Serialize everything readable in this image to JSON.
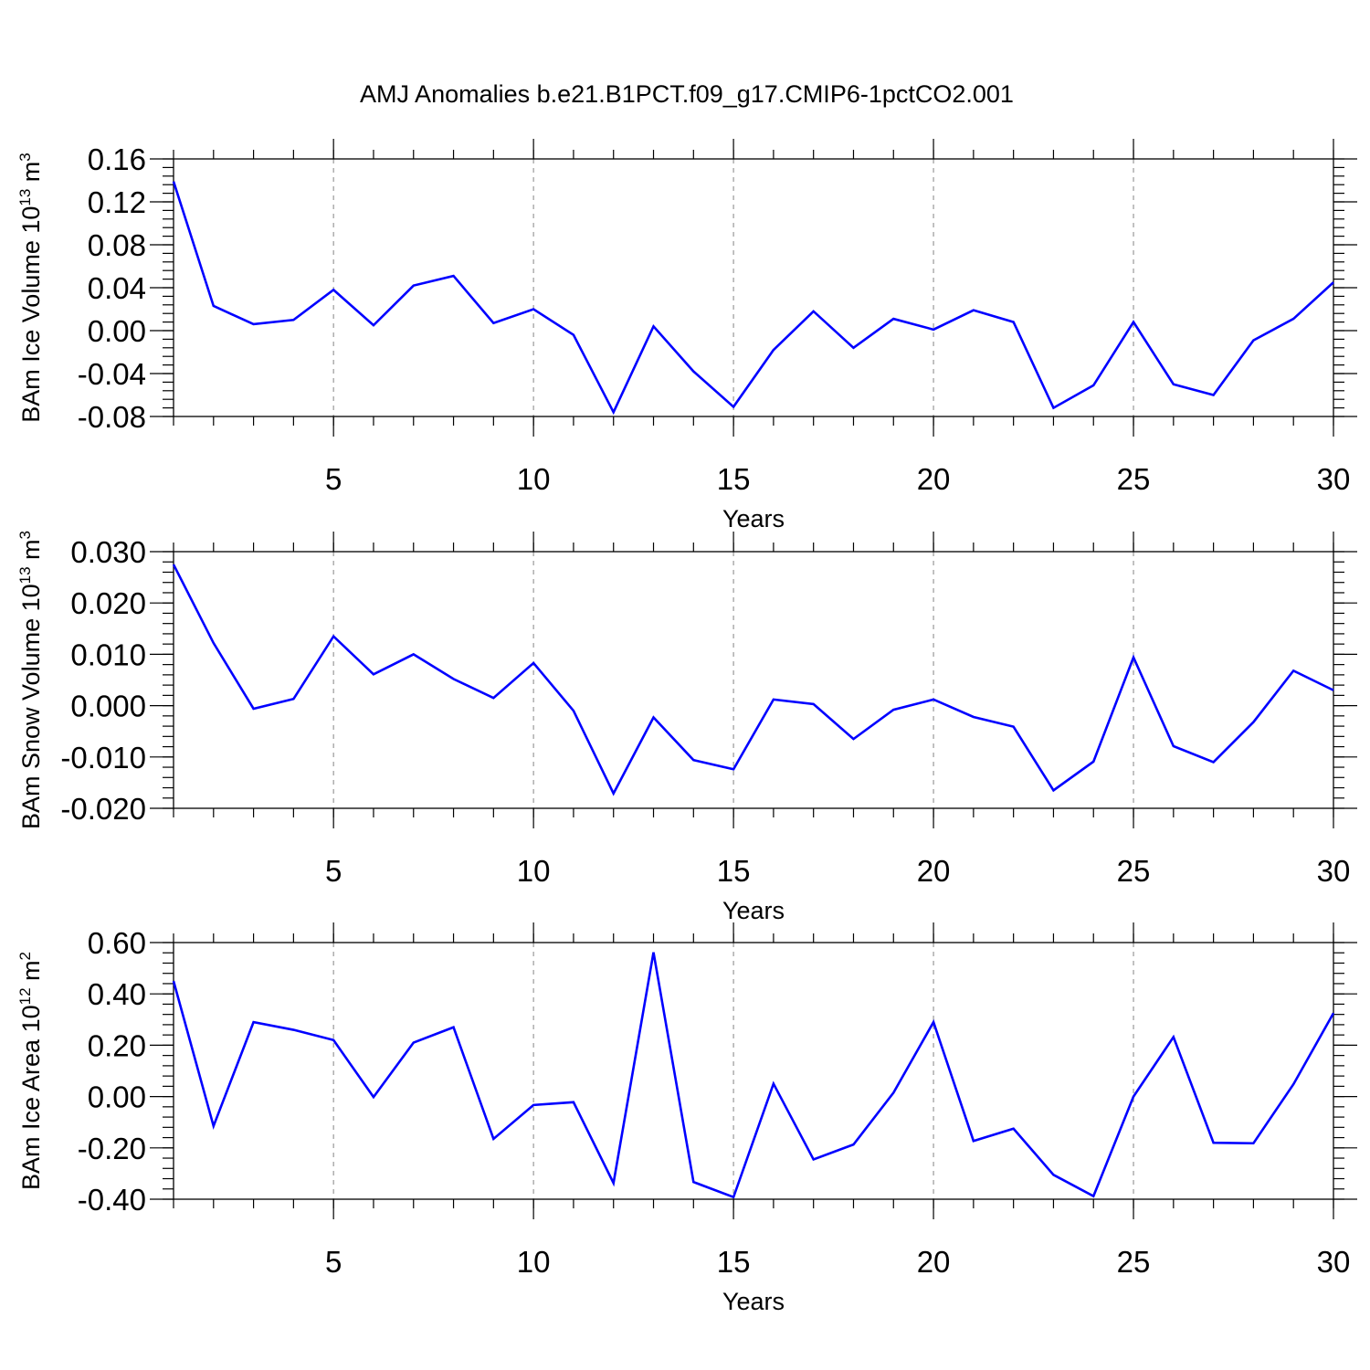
{
  "title": "AMJ Anomalies b.e21.B1PCT.f09_g17.CMIP6-1pctCO2.001",
  "colors": {
    "line": "#0000ff",
    "grid": "#999999",
    "axis": "#000000"
  },
  "chart_data": [
    {
      "type": "line",
      "xlabel": "Years",
      "ylabel": {
        "main": "BAm Ice Volume 10",
        "sup": "13",
        "unit": " m",
        "unit_sup": "3"
      },
      "xlim": [
        1,
        30
      ],
      "ylim": [
        -0.08,
        0.16
      ],
      "xticks": [
        5,
        10,
        15,
        20,
        25,
        30
      ],
      "xtick_labels": [
        "5",
        "10",
        "15",
        "20",
        "25",
        "30"
      ],
      "yticks": [
        -0.08,
        -0.04,
        0.0,
        0.04,
        0.08,
        0.12,
        0.16
      ],
      "ytick_labels": [
        "-0.08",
        "-0.04",
        "0.00",
        "0.04",
        "0.08",
        "0.12",
        "0.16"
      ],
      "grid": "vertical dashed at major x ticks",
      "x": [
        1,
        2,
        3,
        4,
        5,
        6,
        7,
        8,
        9,
        10,
        11,
        12,
        13,
        14,
        15,
        16,
        17,
        18,
        19,
        20,
        21,
        22,
        23,
        24,
        25,
        26,
        27,
        28,
        29,
        30
      ],
      "series": [
        {
          "name": "BAm Ice Volume",
          "values": [
            0.139,
            0.023,
            0.006,
            0.01,
            0.038,
            0.005,
            0.042,
            0.051,
            0.007,
            0.02,
            -0.004,
            -0.076,
            0.004,
            -0.038,
            -0.071,
            -0.018,
            0.018,
            -0.016,
            0.011,
            0.001,
            0.019,
            0.008,
            -0.072,
            -0.051,
            0.008,
            -0.05,
            -0.06,
            -0.009,
            0.011,
            0.045
          ]
        }
      ]
    },
    {
      "type": "line",
      "xlabel": "Years",
      "ylabel": {
        "main": "BAm Snow Volume 10",
        "sup": "13",
        "unit": " m",
        "unit_sup": "3"
      },
      "xlim": [
        1,
        30
      ],
      "ylim": [
        -0.02,
        0.03
      ],
      "xticks": [
        5,
        10,
        15,
        20,
        25,
        30
      ],
      "xtick_labels": [
        "5",
        "10",
        "15",
        "20",
        "25",
        "30"
      ],
      "yticks": [
        -0.02,
        -0.01,
        0.0,
        0.01,
        0.02,
        0.03
      ],
      "ytick_labels": [
        "-0.020",
        "-0.010",
        "0.000",
        "0.010",
        "0.020",
        "0.030"
      ],
      "grid": "vertical dashed at major x ticks",
      "x": [
        1,
        2,
        3,
        4,
        5,
        6,
        7,
        8,
        9,
        10,
        11,
        12,
        13,
        14,
        15,
        16,
        17,
        18,
        19,
        20,
        21,
        22,
        23,
        24,
        25,
        26,
        27,
        28,
        29,
        30
      ],
      "series": [
        {
          "name": "BAm Snow Volume",
          "values": [
            0.0275,
            0.0122,
            -0.0006,
            0.0013,
            0.0135,
            0.0061,
            0.01,
            0.0052,
            0.0015,
            0.0083,
            -0.001,
            -0.0171,
            -0.0023,
            -0.0106,
            -0.0124,
            0.0012,
            0.0003,
            -0.0065,
            -0.0008,
            0.0012,
            -0.0022,
            -0.0041,
            -0.0165,
            -0.0109,
            0.0094,
            -0.0079,
            -0.011,
            -0.0032,
            0.0068,
            0.003
          ]
        }
      ]
    },
    {
      "type": "line",
      "xlabel": "Years",
      "ylabel": {
        "main": "BAm Ice Area 10",
        "sup": "12",
        "unit": " m",
        "unit_sup": "2"
      },
      "xlim": [
        1,
        30
      ],
      "ylim": [
        -0.4,
        0.6
      ],
      "xticks": [
        5,
        10,
        15,
        20,
        25,
        30
      ],
      "xtick_labels": [
        "5",
        "10",
        "15",
        "20",
        "25",
        "30"
      ],
      "yticks": [
        -0.4,
        -0.2,
        0.0,
        0.2,
        0.4,
        0.6
      ],
      "ytick_labels": [
        "-0.40",
        "-0.20",
        "0.00",
        "0.20",
        "0.40",
        "0.60"
      ],
      "grid": "vertical dashed at major x ticks",
      "x": [
        1,
        2,
        3,
        4,
        5,
        6,
        7,
        8,
        9,
        10,
        11,
        12,
        13,
        14,
        15,
        16,
        17,
        18,
        19,
        20,
        21,
        22,
        23,
        24,
        25,
        26,
        27,
        28,
        29,
        30
      ],
      "series": [
        {
          "name": "BAm Ice Area",
          "values": [
            0.45,
            -0.115,
            0.29,
            0.26,
            0.22,
            -0.002,
            0.21,
            0.27,
            -0.165,
            -0.033,
            -0.022,
            -0.337,
            0.562,
            -0.333,
            -0.392,
            0.05,
            -0.245,
            -0.187,
            0.015,
            0.29,
            -0.173,
            -0.125,
            -0.305,
            -0.388,
            0.0,
            0.232,
            -0.18,
            -0.182,
            0.048,
            0.325
          ]
        }
      ]
    }
  ]
}
